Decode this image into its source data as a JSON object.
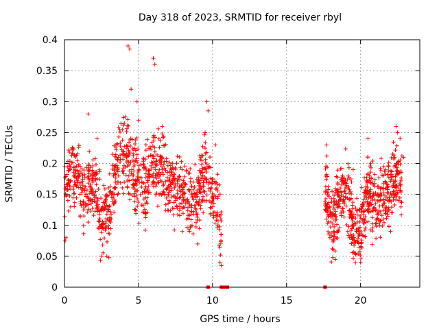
{
  "chart_data": {
    "type": "scatter",
    "title": "Day 318 of 2023, SRMTID for receiver rbyl",
    "xlabel": "GPS time / hours",
    "ylabel": "SRMTID / TECUs",
    "xlim": [
      0,
      24
    ],
    "ylim": [
      0,
      0.4
    ],
    "grid": true,
    "marker": "plus",
    "color": "#ff0000",
    "x_ticks": [
      0,
      5,
      10,
      15,
      20
    ],
    "x_tick_labels": [
      "0",
      "5",
      "10",
      "15",
      "20"
    ],
    "y_ticks": [
      0,
      0.05,
      0.1,
      0.15,
      0.2,
      0.25,
      0.3,
      0.35,
      0.4
    ],
    "y_tick_labels": [
      "0",
      "0.05",
      "0.1",
      "0.15",
      "0.2",
      "0.25",
      "0.3",
      "0.35",
      "0.4"
    ],
    "trend": [
      [
        0.0,
        0.16
      ],
      [
        0.5,
        0.19
      ],
      [
        1.0,
        0.17
      ],
      [
        1.5,
        0.15
      ],
      [
        2.0,
        0.18
      ],
      [
        2.5,
        0.11
      ],
      [
        3.0,
        0.12
      ],
      [
        3.5,
        0.2
      ],
      [
        4.0,
        0.22
      ],
      [
        4.5,
        0.19
      ],
      [
        5.0,
        0.17
      ],
      [
        5.5,
        0.16
      ],
      [
        6.0,
        0.2
      ],
      [
        6.5,
        0.19
      ],
      [
        7.0,
        0.17
      ],
      [
        7.5,
        0.16
      ],
      [
        8.0,
        0.15
      ],
      [
        8.5,
        0.14
      ],
      [
        9.0,
        0.15
      ],
      [
        9.5,
        0.19
      ],
      [
        10.0,
        0.15
      ],
      [
        10.6,
        0.1
      ]
    ],
    "trend2": [
      [
        17.7,
        0.15
      ],
      [
        18.0,
        0.1
      ],
      [
        18.5,
        0.13
      ],
      [
        19.0,
        0.17
      ],
      [
        19.5,
        0.09
      ],
      [
        20.0,
        0.08
      ],
      [
        20.5,
        0.17
      ],
      [
        21.0,
        0.12
      ],
      [
        21.5,
        0.15
      ],
      [
        22.0,
        0.16
      ],
      [
        22.5,
        0.19
      ],
      [
        22.8,
        0.16
      ]
    ],
    "spikes": [
      [
        0.05,
        0.075
      ],
      [
        0.1,
        0.08
      ],
      [
        1.6,
        0.28
      ],
      [
        2.2,
        0.24
      ],
      [
        2.5,
        0.05
      ],
      [
        3.0,
        0.048
      ],
      [
        4.3,
        0.39
      ],
      [
        4.4,
        0.385
      ],
      [
        4.5,
        0.32
      ],
      [
        4.9,
        0.3
      ],
      [
        5.0,
        0.27
      ],
      [
        6.0,
        0.37
      ],
      [
        6.1,
        0.36
      ],
      [
        6.6,
        0.26
      ],
      [
        9.0,
        0.07
      ],
      [
        9.5,
        0.25
      ],
      [
        9.6,
        0.3
      ],
      [
        9.7,
        0.285
      ],
      [
        10.5,
        0.04
      ],
      [
        10.6,
        0.035
      ],
      [
        10.2,
        0.23
      ],
      [
        17.7,
        0.23
      ],
      [
        18.3,
        0.045
      ],
      [
        19.5,
        0.19
      ],
      [
        20.0,
        0.04
      ],
      [
        20.5,
        0.24
      ],
      [
        22.4,
        0.26
      ],
      [
        22.5,
        0.25
      ],
      [
        22.9,
        0.21
      ]
    ],
    "zero_points": [
      9.7,
      10.6,
      10.8,
      11.0,
      17.6
    ]
  }
}
